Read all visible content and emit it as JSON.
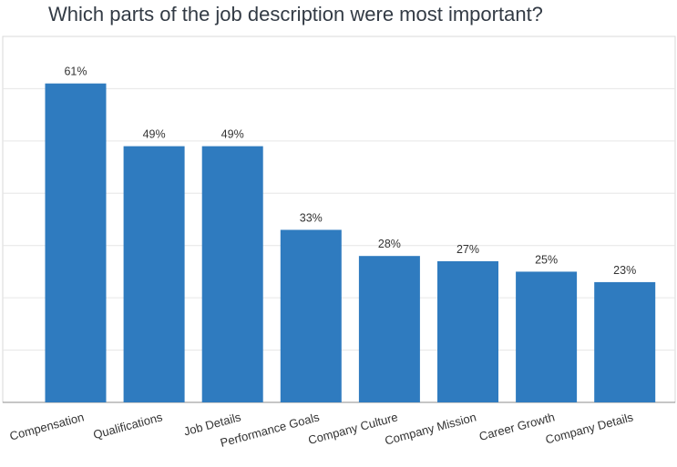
{
  "chart_data": {
    "type": "bar",
    "title": "Which parts of the job description were most important?",
    "xlabel": "",
    "ylabel": "",
    "categories": [
      "Compensation",
      "Qualifications",
      "Job Details",
      "Performance Goals",
      "Company Culture",
      "Company Mission",
      "Career Growth",
      "Company Details"
    ],
    "values": [
      61,
      49,
      49,
      33,
      28,
      27,
      25,
      23
    ],
    "data_labels": [
      "61%",
      "49%",
      "49%",
      "33%",
      "28%",
      "27%",
      "25%",
      "23%"
    ],
    "unit": "%",
    "ylim": [
      0,
      70
    ],
    "grid": true,
    "bar_color": "#2f7bbf"
  }
}
